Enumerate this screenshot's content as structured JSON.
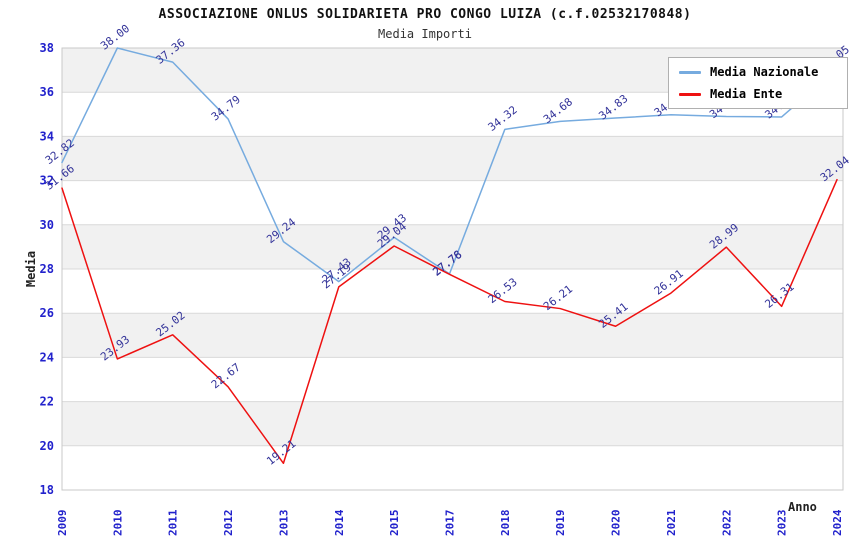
{
  "chart_data": {
    "type": "line",
    "title": "ASSOCIAZIONE ONLUS SOLIDARIETA PRO CONGO LUIZA (c.f.02532170848)",
    "subtitle": "Media Importi",
    "xlabel": "Anno",
    "ylabel": "Media",
    "ylim": [
      18,
      38
    ],
    "yticks": [
      18,
      20,
      22,
      24,
      26,
      28,
      30,
      32,
      34,
      36,
      38
    ],
    "grid": "horizontal, alternating shaded bands",
    "legend_position": "top-right inside plot",
    "categories": [
      "2009",
      "2010",
      "2011",
      "2012",
      "2013",
      "2014",
      "2015",
      "2017",
      "2018",
      "2019",
      "2020",
      "2021",
      "2022",
      "2023",
      "2024"
    ],
    "series": [
      {
        "name": "Media Nazionale",
        "color": "#76abdf",
        "values": [
          32.82,
          38.0,
          37.36,
          34.79,
          29.24,
          27.43,
          29.43,
          27.78,
          34.32,
          34.68,
          34.83,
          34.98,
          34.9,
          34.88,
          37.05
        ]
      },
      {
        "name": "Media Ente",
        "color": "#ee1111",
        "values": [
          31.66,
          23.93,
          25.02,
          22.67,
          19.21,
          27.19,
          29.04,
          27.76,
          26.53,
          26.21,
          25.41,
          26.91,
          28.99,
          26.31,
          32.04
        ]
      }
    ],
    "colors": {
      "tick_label": "#2222cc",
      "data_label": "#333399",
      "band_fill": "#f1f1f1",
      "gridline": "#d9d9d9",
      "plot_border": "#c9c9c9"
    }
  }
}
